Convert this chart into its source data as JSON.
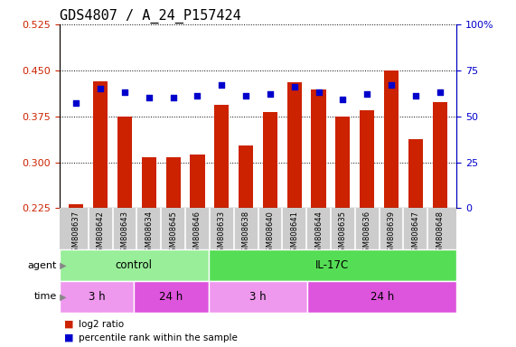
{
  "title": "GDS4807 / A_24_P157424",
  "samples": [
    "GSM808637",
    "GSM808642",
    "GSM808643",
    "GSM808634",
    "GSM808645",
    "GSM808646",
    "GSM808633",
    "GSM808638",
    "GSM808640",
    "GSM808641",
    "GSM808644",
    "GSM808635",
    "GSM808636",
    "GSM808639",
    "GSM808647",
    "GSM808648"
  ],
  "log2_ratio": [
    0.232,
    0.432,
    0.375,
    0.308,
    0.308,
    0.312,
    0.393,
    0.328,
    0.382,
    0.43,
    0.418,
    0.375,
    0.385,
    0.45,
    0.338,
    0.398
  ],
  "percentile": [
    57,
    65,
    63,
    60,
    60,
    61,
    67,
    61,
    62,
    66,
    63,
    59,
    62,
    67,
    61,
    63
  ],
  "ylim_left": [
    0.225,
    0.525
  ],
  "ylim_right": [
    0,
    100
  ],
  "yticks_left": [
    0.225,
    0.3,
    0.375,
    0.45,
    0.525
  ],
  "yticks_right": [
    0,
    25,
    50,
    75,
    100
  ],
  "ytick_labels_right": [
    "0",
    "25",
    "50",
    "75",
    "100%"
  ],
  "bar_color": "#cc2200",
  "dot_color": "#0000cc",
  "background_color": "#ffffff",
  "agent_groups": [
    {
      "label": "control",
      "start": 0,
      "end": 6,
      "color": "#99ee99"
    },
    {
      "label": "IL-17C",
      "start": 6,
      "end": 16,
      "color": "#55dd55"
    }
  ],
  "time_groups": [
    {
      "label": "3 h",
      "start": 0,
      "end": 3,
      "color": "#ee99ee"
    },
    {
      "label": "24 h",
      "start": 3,
      "end": 6,
      "color": "#dd55dd"
    },
    {
      "label": "3 h",
      "start": 6,
      "end": 10,
      "color": "#ee99ee"
    },
    {
      "label": "24 h",
      "start": 10,
      "end": 16,
      "color": "#dd55dd"
    }
  ],
  "legend_items": [
    {
      "label": "log2 ratio",
      "color": "#cc2200"
    },
    {
      "label": "percentile rank within the sample",
      "color": "#0000cc"
    }
  ],
  "grid_color": "#000000",
  "tick_color_left": "#cc2200",
  "tick_color_right": "#0000cc",
  "title_fontsize": 11,
  "bar_width": 0.6,
  "sample_bg_color": "#cccccc",
  "sample_cell_edge_color": "#ffffff"
}
